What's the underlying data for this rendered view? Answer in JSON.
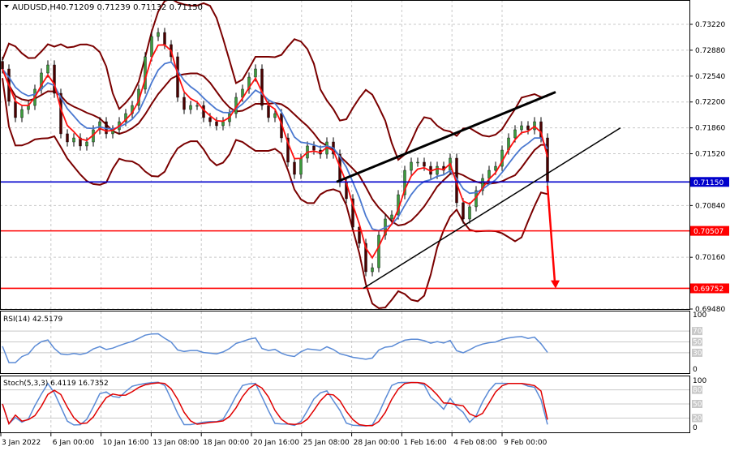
{
  "header": {
    "symbol": "AUDUSD,H4",
    "ohlc": "0.71209 0.71239 0.71132 0.71150"
  },
  "colors": {
    "support_line": "#0000cc",
    "target_lines": "#ff0000",
    "bollinger": "#7a0000",
    "fast_ma": "#ff1010",
    "slow_ma": "#4a78d0",
    "bull_candle": "#3c9a3c",
    "bear_candle": "#4a0000",
    "rsi": "#5b8bd6",
    "stoch_main": "#5b8bd6",
    "stoch_signal": "#e00000"
  },
  "chart_data": [
    {
      "type": "candlestick",
      "title": "AUDUSD,H4",
      "ylim": [
        0.694,
        0.735
      ],
      "y_ticks": [
        "0.73220",
        "0.72880",
        "0.72540",
        "0.72200",
        "0.71860",
        "0.71520",
        "0.70840",
        "0.70160",
        "0.69480"
      ],
      "x_ticks": [
        "3 Jan 2022",
        "6 Jan 00:00",
        "10 Jan 16:00",
        "13 Jan 08:00",
        "18 Jan 00:00",
        "20 Jan 16:00",
        "25 Jan 08:00",
        "28 Jan 00:00",
        "1 Feb 16:00",
        "4 Feb 08:00",
        "9 Feb 00:00"
      ],
      "grid": true,
      "closes": [
        0.72634,
        0.72208,
        0.71995,
        0.72101,
        0.72154,
        0.72368,
        0.72581,
        0.72687,
        0.72314,
        0.71782,
        0.71675,
        0.71728,
        0.71622,
        0.71675,
        0.71835,
        0.71941,
        0.71782,
        0.71835,
        0.71941,
        0.72048,
        0.72154,
        0.72368,
        0.72794,
        0.7306,
        0.73113,
        0.72954,
        0.72794,
        0.72261,
        0.72101,
        0.72154,
        0.72154,
        0.71995,
        0.71941,
        0.71888,
        0.71941,
        0.72048,
        0.72261,
        0.72368,
        0.72527,
        0.72634,
        0.72154,
        0.71995,
        0.72048,
        0.71728,
        0.71409,
        0.71249,
        0.71462,
        0.71622,
        0.71568,
        0.71515,
        0.71675,
        0.71515,
        0.71142,
        0.70929,
        0.70556,
        0.70343,
        0.6997,
        0.70023,
        0.7045,
        0.70663,
        0.70716,
        0.70982,
        0.71302,
        0.71409,
        0.71409,
        0.71355,
        0.71249,
        0.71355,
        0.71302,
        0.71462,
        0.70876,
        0.70663,
        0.70823,
        0.71036,
        0.71196,
        0.71302,
        0.71355,
        0.71568,
        0.71728,
        0.71835,
        0.71888,
        0.71835,
        0.71941,
        0.71728,
        0.7115
      ],
      "levels": [
        {
          "label": "0.71150",
          "value": 0.7115,
          "color": "#0000cc"
        },
        {
          "label": "0.70507",
          "value": 0.70507,
          "color": "#ff0000"
        },
        {
          "label": "0.69752",
          "value": 0.69752,
          "color": "#ff0000"
        }
      ],
      "channel": {
        "upper": [
          0.7115,
          0.7233
        ],
        "lower": [
          0.69752,
          0.7186
        ]
      },
      "arrow": [
        0.711,
        0.6975
      ]
    },
    {
      "type": "line",
      "title": "RSI(14) 42.5179",
      "ylim": [
        0,
        100
      ],
      "y_ticks": [
        "100",
        "70",
        "50",
        "30",
        "0"
      ]
    },
    {
      "type": "line",
      "title": "Stoch(5,3,3) 6.4119 16.7352",
      "ylim": [
        0,
        100
      ],
      "y_ticks": [
        "100",
        "80",
        "50",
        "20",
        "0"
      ]
    }
  ]
}
